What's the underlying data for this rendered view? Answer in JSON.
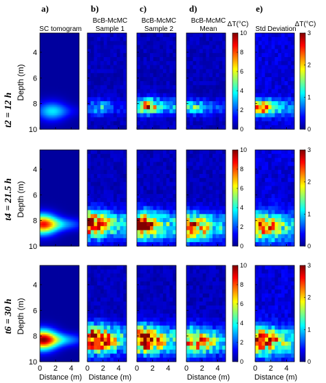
{
  "figure": {
    "column_letters": [
      "a)",
      "b)",
      "c)",
      "d)",
      "e)"
    ],
    "column_titles": [
      [
        "SC tomogram"
      ],
      [
        "BcB-McMC",
        "Sample 1"
      ],
      [
        "BcB-McMC",
        "Sample 2"
      ],
      [
        "BcB-McMC",
        "Mean"
      ],
      [
        "Std Deviation"
      ]
    ],
    "row_labels": [
      "t2 = 12 h",
      "t4 = 21.5 h",
      "t6 = 30 h"
    ],
    "ylabel": "Depth (m)",
    "xlabel": "Distance (m)",
    "colorbar_label": "ΔT(°C)"
  },
  "chart_data": {
    "type": "heatmap",
    "title": "",
    "xlabel": "Distance (m)",
    "ylabel": "Depth (m)",
    "x_range": [
      0,
      5
    ],
    "y_range": [
      10,
      2.5
    ],
    "x_ticks": [
      0,
      2,
      4
    ],
    "y_ticks": [
      4,
      6,
      8,
      10
    ],
    "grid": false,
    "colormap": "jet",
    "colorbars": [
      {
        "label": "ΔT(°C)",
        "range": [
          0,
          10
        ],
        "ticks": [
          0,
          2,
          4,
          6,
          8,
          10
        ],
        "applies_to": "columns a-d"
      },
      {
        "label": "ΔT(°C)",
        "range": [
          0,
          3
        ],
        "ticks": [
          0,
          1,
          2,
          3
        ],
        "applies_to": "column e"
      }
    ],
    "panels": [
      {
        "row": "t2 = 12 h",
        "column": "SC tomogram",
        "hotspot": {
          "x": 1.5,
          "depth": 8.6,
          "peak": 2.5
        }
      },
      {
        "row": "t2 = 12 h",
        "column": "BcB-McMC Sample 1",
        "hotspot": {
          "x": 1.5,
          "depth": 8.3,
          "peak": 3
        }
      },
      {
        "row": "t2 = 12 h",
        "column": "BcB-McMC Sample 2",
        "hotspot": {
          "x": 1.2,
          "depth": 8.2,
          "peak": 8
        }
      },
      {
        "row": "t2 = 12 h",
        "column": "BcB-McMC Mean",
        "hotspot": {
          "x": 1.0,
          "depth": 8.3,
          "peak": 4
        }
      },
      {
        "row": "t2 = 12 h",
        "column": "Std Deviation",
        "hotspot": {
          "x": 1.0,
          "depth": 8.3,
          "peak": 2.2
        }
      },
      {
        "row": "t4 = 21.5 h",
        "column": "SC tomogram",
        "hotspot": {
          "x": 0.3,
          "depth": 8.3,
          "peak": 7
        }
      },
      {
        "row": "t4 = 21.5 h",
        "column": "BcB-McMC Sample 1",
        "hotspot": {
          "x": 0.5,
          "depth": 8.3,
          "peak": 9
        }
      },
      {
        "row": "t4 = 21.5 h",
        "column": "BcB-McMC Sample 2",
        "hotspot": {
          "x": 0.5,
          "depth": 8.4,
          "peak": 10
        }
      },
      {
        "row": "t4 = 21.5 h",
        "column": "BcB-McMC Mean",
        "hotspot": {
          "x": 0.8,
          "depth": 8.5,
          "peak": 8
        }
      },
      {
        "row": "t4 = 21.5 h",
        "column": "Std Deviation",
        "hotspot": {
          "x": 1.0,
          "depth": 8.5,
          "peak": 2.2
        }
      },
      {
        "row": "t6 = 30 h",
        "column": "SC tomogram",
        "hotspot": {
          "x": 0.3,
          "depth": 8.3,
          "peak": 8
        }
      },
      {
        "row": "t6 = 30 h",
        "column": "BcB-McMC Sample 1",
        "hotspot": {
          "x": 1.0,
          "depth": 8.3,
          "peak": 10
        }
      },
      {
        "row": "t6 = 30 h",
        "column": "BcB-McMC Sample 2",
        "hotspot": {
          "x": 1.0,
          "depth": 8.3,
          "peak": 10
        }
      },
      {
        "row": "t6 = 30 h",
        "column": "BcB-McMC Mean",
        "hotspot": {
          "x": 1.0,
          "depth": 8.4,
          "peak": 8
        }
      },
      {
        "row": "t6 = 30 h",
        "column": "Std Deviation",
        "hotspot": {
          "x": 1.0,
          "depth": 8.4,
          "peak": 2.5
        }
      }
    ]
  }
}
